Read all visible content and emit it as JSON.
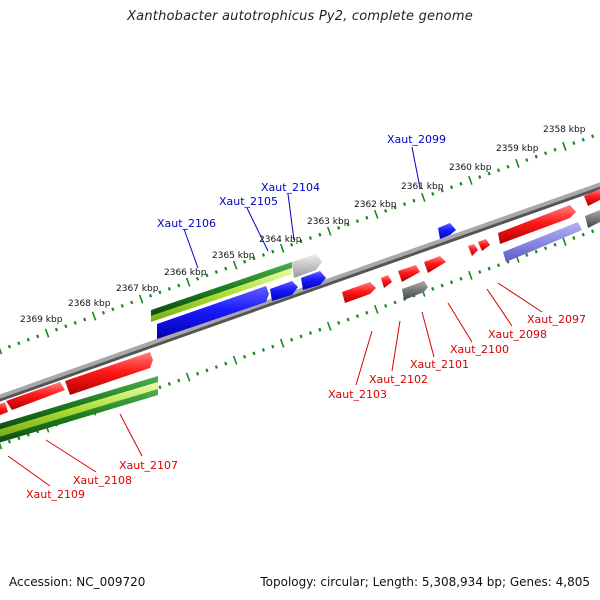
{
  "title": "Xanthobacter autotrophicus Py2, complete genome",
  "footer": {
    "accession": "Accession: NC_009720",
    "summary": "Topology: circular; Length: 5,308,934 bp; Genes: 4,805"
  },
  "colors": {
    "forward_gene": "#ff1a1a",
    "reverse_gene": "#1a1aff",
    "pseudo_gene": "#777777",
    "rna_gene": "#8888e6",
    "light_gene": "#bbbbbb",
    "cds_green": "#1f7a1f",
    "cds_light_green": "#99dd33",
    "backbone": "#8a8a8a",
    "tick": "#1a8a1a",
    "forward_label": "#dd0000",
    "reverse_label": "#0000cc"
  },
  "scale_labels": [
    "2358 kbp",
    "2359 kbp",
    "2360 kbp",
    "2361 kbp",
    "2362 kbp",
    "2363 kbp",
    "2364 kbp",
    "2365 kbp",
    "2366 kbp",
    "2367 kbp",
    "2368 kbp",
    "2369 kbp"
  ],
  "genes_top": [
    {
      "label": "Xaut_2099",
      "strand": "reverse"
    },
    {
      "label": "Xaut_2104",
      "strand": "reverse"
    },
    {
      "label": "Xaut_2105",
      "strand": "reverse"
    },
    {
      "label": "Xaut_2106",
      "strand": "reverse"
    }
  ],
  "genes_bottom": [
    {
      "label": "Xaut_2097",
      "strand": "forward"
    },
    {
      "label": "Xaut_2098",
      "strand": "forward"
    },
    {
      "label": "Xaut_2100",
      "strand": "forward"
    },
    {
      "label": "Xaut_2101",
      "strand": "forward"
    },
    {
      "label": "Xaut_2102",
      "strand": "forward"
    },
    {
      "label": "Xaut_2103",
      "strand": "forward"
    },
    {
      "label": "Xaut_2107",
      "strand": "forward"
    },
    {
      "label": "Xaut_2108",
      "strand": "forward"
    },
    {
      "label": "Xaut_2109",
      "strand": "forward"
    }
  ]
}
